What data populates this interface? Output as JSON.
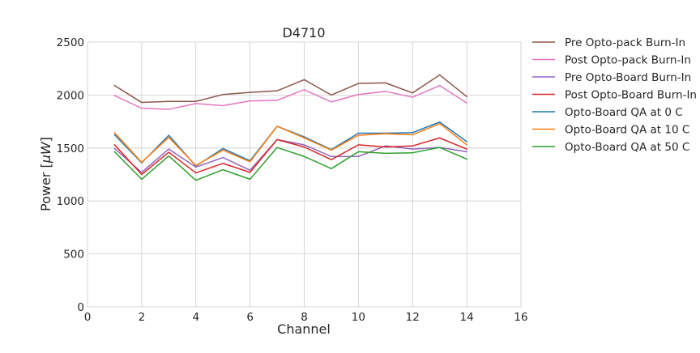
{
  "chart_data": {
    "type": "line",
    "title": "D4710",
    "xlabel": "Channel",
    "ylabel_text": "Power [",
    "ylabel_unit": "μW",
    "ylabel_close": "]",
    "xlim": [
      0,
      16
    ],
    "ylim": [
      0,
      2500
    ],
    "xticks": [
      "0",
      "2",
      "4",
      "6",
      "8",
      "10",
      "12",
      "14",
      "16"
    ],
    "yticks": [
      "0",
      "500",
      "1000",
      "1500",
      "2000",
      "2500"
    ],
    "grid": true,
    "legend_position": "outside-right",
    "x": [
      1,
      2,
      3,
      4,
      5,
      6,
      7,
      8,
      9,
      10,
      11,
      12,
      13,
      14
    ],
    "series": [
      {
        "name": "Pre Opto-pack Burn-In",
        "color": "#8c564b",
        "values": [
          2090,
          1930,
          1940,
          1940,
          2005,
          2025,
          2040,
          2145,
          2000,
          2110,
          2115,
          2020,
          2190,
          1985
        ]
      },
      {
        "name": "Post Opto-pack Burn-In",
        "color": "#e377c2",
        "values": [
          1995,
          1875,
          1865,
          1920,
          1900,
          1945,
          1950,
          2050,
          1935,
          2005,
          2035,
          1980,
          2090,
          1925
        ]
      },
      {
        "name": "Pre Opto-Board Burn-In",
        "color": "#9467bd",
        "values": [
          1495,
          1270,
          1490,
          1320,
          1410,
          1290,
          1580,
          1530,
          1420,
          1420,
          1520,
          1490,
          1505,
          1465
        ]
      },
      {
        "name": "Post Opto-Board Burn-In",
        "color": "#d62728",
        "values": [
          1530,
          1250,
          1460,
          1265,
          1355,
          1270,
          1580,
          1510,
          1390,
          1530,
          1510,
          1520,
          1595,
          1490
        ]
      },
      {
        "name": "Opto-Board QA at 0 C",
        "color": "#1f77b4",
        "values": [
          1625,
          1360,
          1620,
          1330,
          1495,
          1380,
          1705,
          1605,
          1485,
          1640,
          1640,
          1645,
          1745,
          1560
        ]
      },
      {
        "name": "Opto-Board QA at 10 C",
        "color": "#ff7f0e",
        "values": [
          1645,
          1365,
          1600,
          1335,
          1480,
          1370,
          1705,
          1595,
          1480,
          1620,
          1635,
          1625,
          1730,
          1530
        ]
      },
      {
        "name": "Opto-Board QA at 50 C",
        "color": "#2ca02c",
        "values": [
          1465,
          1205,
          1425,
          1195,
          1295,
          1205,
          1505,
          1420,
          1305,
          1465,
          1450,
          1455,
          1505,
          1395
        ]
      }
    ]
  }
}
